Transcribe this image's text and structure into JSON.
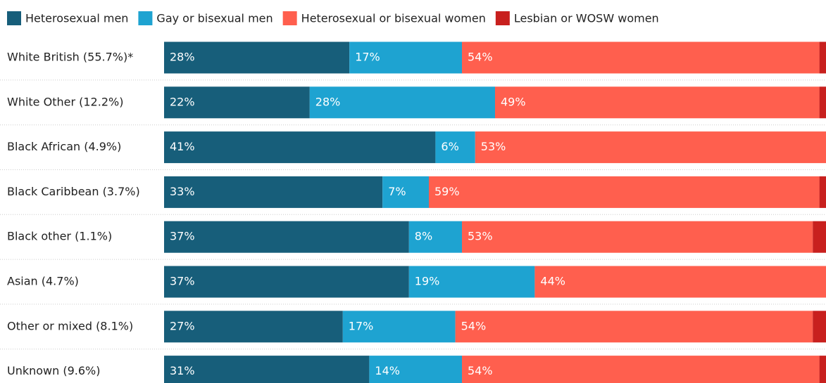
{
  "chart_data": {
    "type": "stacked-bar-horizontal",
    "categories": [
      "White British (55.7%)*",
      "White Other (12.2%)",
      "Black African (4.9%)",
      "Black Caribbean (3.7%)",
      "Black other (1.1%)",
      "Asian (4.7%)",
      "Other or mixed (8.1%)",
      "Unknown (9.6%)"
    ],
    "xlim": [
      0,
      100
    ],
    "series": [
      {
        "name": "Heterosexual men",
        "color": "#175e7a",
        "values": [
          28,
          22,
          41,
          33,
          37,
          37,
          27,
          31
        ],
        "value_labels": [
          "28%",
          "22%",
          "41%",
          "33%",
          "37%",
          "37%",
          "27%",
          "31%"
        ]
      },
      {
        "name": "Gay or bisexual men",
        "color": "#1ea3d1",
        "values": [
          17,
          28,
          6,
          7,
          8,
          19,
          17,
          14
        ],
        "value_labels": [
          "17%",
          "28%",
          "6%",
          "7%",
          "8%",
          "19%",
          "17%",
          "14%"
        ]
      },
      {
        "name": "Heterosexual or bisexual women",
        "color": "#ff5f4e",
        "values": [
          54,
          49,
          53,
          59,
          53,
          44,
          54,
          54
        ],
        "value_labels": [
          "54%",
          "49%",
          "53%",
          "59%",
          "53%",
          "44%",
          "54%",
          "54%"
        ]
      },
      {
        "name": "Lesbian or WOSW women",
        "color": "#c8201e",
        "values": [
          1,
          1,
          0,
          1,
          2,
          0,
          2,
          1
        ]
      }
    ]
  }
}
